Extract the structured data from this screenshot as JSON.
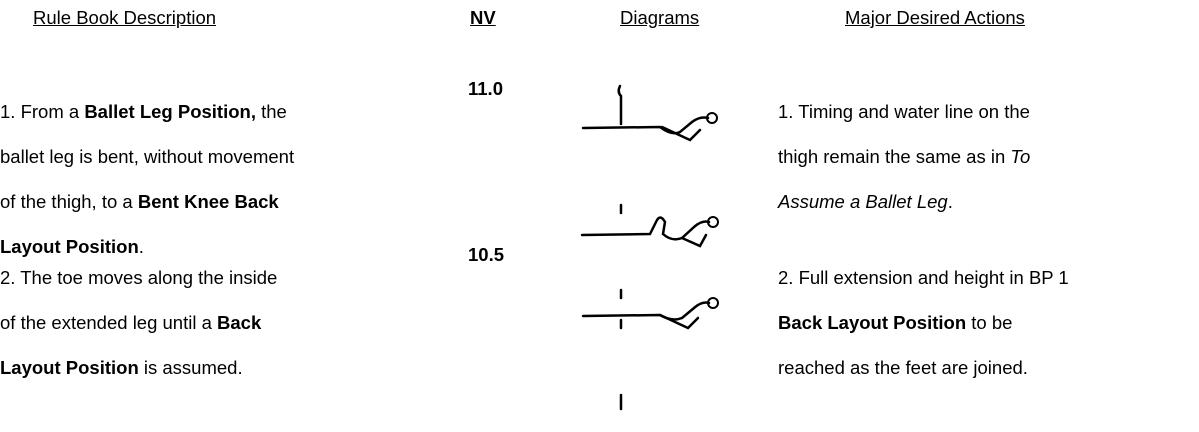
{
  "header": {
    "description": "Rule Book Description",
    "nv": "NV",
    "diagrams": "Diagrams",
    "actions": "Major Desired Actions"
  },
  "rows": [
    {
      "description": [
        [
          "1. From a ",
          "Ballet Leg Position,",
          " the"
        ],
        [
          "ballet leg is bent, without movement"
        ],
        [
          "of the thigh, to a ",
          "Bent Knee Back"
        ],
        [
          "Layout Position",
          "."
        ]
      ],
      "nv": "11.0",
      "actions": [
        [
          "1. Timing and water line on the"
        ],
        [
          "thigh remain the same as in ",
          "To"
        ],
        [
          "Assume a Ballet Leg",
          "."
        ]
      ]
    },
    {
      "description": [
        [
          "2. The toe moves along the inside"
        ],
        [
          "of the extended leg until a ",
          "Back"
        ],
        [
          "Layout Position",
          " is assumed."
        ]
      ],
      "nv": "10.5",
      "actions": [
        [
          "2. Full extension and height in BP 1"
        ],
        [
          "Back Layout Position",
          " to be"
        ],
        [
          "reached as the feet are joined."
        ]
      ]
    }
  ]
}
